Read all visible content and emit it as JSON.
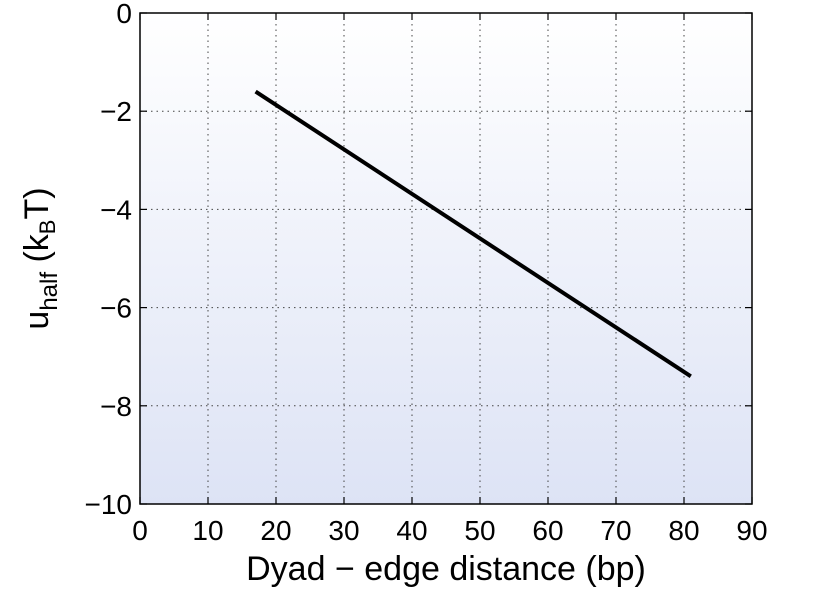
{
  "chart_data": {
    "type": "line",
    "title": "",
    "xlabel": "Dyad − edge distance (bp)",
    "ylabel": {
      "main": "u",
      "sub": "half",
      "unit_open": " (k",
      "unit_sub": "B",
      "unit_close": "T)"
    },
    "xlim": [
      0,
      90
    ],
    "ylim": [
      -10,
      0
    ],
    "x_ticks": [
      0,
      10,
      20,
      30,
      40,
      50,
      60,
      70,
      80,
      90
    ],
    "y_ticks": [
      0,
      -2,
      -4,
      -6,
      -8,
      -10
    ],
    "x_tick_labels": [
      "0",
      "10",
      "20",
      "30",
      "40",
      "50",
      "60",
      "70",
      "80",
      "90"
    ],
    "y_tick_labels": [
      "0",
      "−2",
      "−4",
      "−6",
      "−8",
      "−10"
    ],
    "grid": true,
    "grid_style": "dotted",
    "series": [
      {
        "x": [
          17,
          81
        ],
        "y": [
          -1.6,
          -7.4
        ],
        "color": "#000000"
      }
    ],
    "colors": {
      "background_top": "#ffffff",
      "background_bottom": "#dde3f5",
      "line": "#000000",
      "grid": "#444444"
    }
  }
}
